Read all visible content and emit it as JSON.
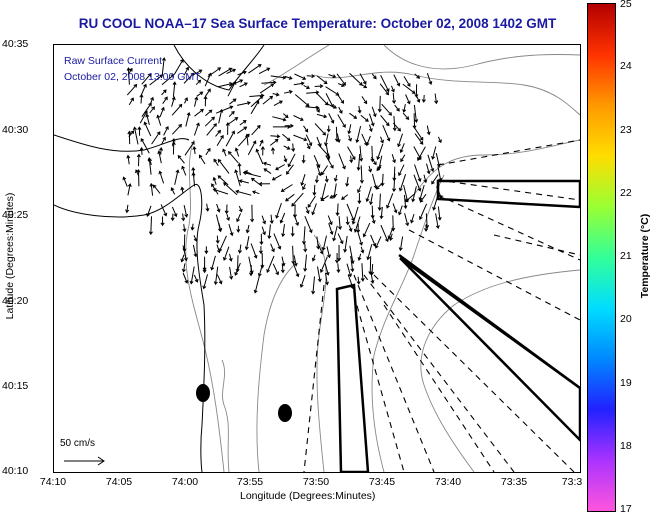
{
  "title": "RU COOL  NOAA–17  Sea Surface Temperature:  October 02, 2008 1402 GMT",
  "overlay": {
    "line1": "Raw Surface Current",
    "line2": "October 02, 2008 13:00 GMT"
  },
  "scale": {
    "label": "50 cm/s"
  },
  "axes": {
    "ylabel": "Latitude (Degrees:Minutes)",
    "xlabel": "Longitude (Degrees:Minutes)",
    "yticks": [
      "40:35",
      "40:30",
      "40:25",
      "40:20",
      "40:15",
      "40:10"
    ],
    "xticks": [
      "74:10",
      "74:05",
      "74:00",
      "73:55",
      "73:50",
      "73:45",
      "73:40",
      "73:35",
      "73:3"
    ]
  },
  "colorbar": {
    "label": "Temperature (°C)",
    "ticks": [
      "25",
      "24",
      "23",
      "22",
      "21",
      "20",
      "19",
      "18",
      "17"
    ],
    "colors": [
      "#b30000",
      "#ff3300",
      "#ff9900",
      "#ffdd00",
      "#99ff33",
      "#33ff99",
      "#00ddff",
      "#0088ff",
      "#2222ff",
      "#aa33ff",
      "#ff55dd"
    ]
  }
}
